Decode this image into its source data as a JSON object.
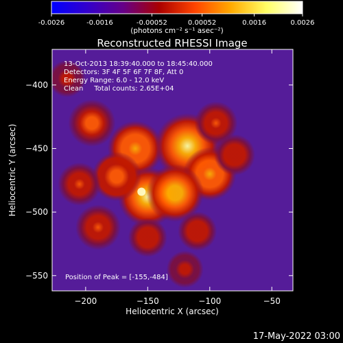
{
  "colorbar": {
    "tick_labels": [
      "-0.0026",
      "-0.0016",
      "-0.00052",
      "0.00052",
      "0.0016",
      "0.0026"
    ],
    "tick_values": [
      -0.0026,
      -0.0016,
      -0.00052,
      0.00052,
      0.0016,
      0.0026
    ],
    "range": [
      -0.0026,
      0.0026
    ],
    "units_text": "(photons cm⁻² s⁻¹ asec⁻²)",
    "colormap_stops": [
      "#0000ff",
      "#3300cc",
      "#660088",
      "#aa0000",
      "#ff4400",
      "#ffaa00",
      "#ffff66",
      "#ffffff"
    ]
  },
  "chart_data": {
    "type": "heatmap",
    "title": "Reconstructed RHESSI Image",
    "xlabel": "Heliocentric X (arcsec)",
    "ylabel": "Heliocentric Y (arcsec)",
    "xlim": [
      -227,
      -33
    ],
    "ylim": [
      -562,
      -372
    ],
    "x_ticks": [
      -200,
      -150,
      -100,
      -50
    ],
    "y_ticks": [
      -550,
      -500,
      -450,
      -400
    ],
    "x_tick_labels": [
      "−200",
      "−150",
      "−100",
      "−50"
    ],
    "y_tick_labels": [
      "−550",
      "−500",
      "−450",
      "−400"
    ],
    "annotations": [
      "13-Oct-2013 18:39:40.000 to 18:45:40.000",
      "Detectors: 3F 4F 5F 6F 7F 8F, Att 0",
      "Energy Range: 6.0 - 12.0 keV",
      "Clean     Total counts: 2.65E+04"
    ],
    "peak_label": "Position of Peak = [-155,-484]",
    "peak_position": [
      -155,
      -484
    ],
    "source_regions": [
      {
        "x": -160,
        "y": -450,
        "intensity": 0.75
      },
      {
        "x": -118,
        "y": -448,
        "intensity": 1.0
      },
      {
        "x": -150,
        "y": -488,
        "intensity": 0.85
      },
      {
        "x": -195,
        "y": -430,
        "intensity": 0.55
      },
      {
        "x": -175,
        "y": -472,
        "intensity": 0.6
      },
      {
        "x": -100,
        "y": -470,
        "intensity": 0.7
      },
      {
        "x": -128,
        "y": -485,
        "intensity": 0.8
      },
      {
        "x": -205,
        "y": -478,
        "intensity": 0.45
      },
      {
        "x": -190,
        "y": -512,
        "intensity": 0.5
      },
      {
        "x": -150,
        "y": -520,
        "intensity": 0.35
      },
      {
        "x": -95,
        "y": -430,
        "intensity": 0.45
      },
      {
        "x": -80,
        "y": -455,
        "intensity": 0.4
      },
      {
        "x": -215,
        "y": -395,
        "intensity": 0.3
      },
      {
        "x": -120,
        "y": -545,
        "intensity": 0.3
      },
      {
        "x": -110,
        "y": -515,
        "intensity": 0.35
      }
    ]
  },
  "footer": {
    "timestamp": "17-May-2022 03:00"
  }
}
